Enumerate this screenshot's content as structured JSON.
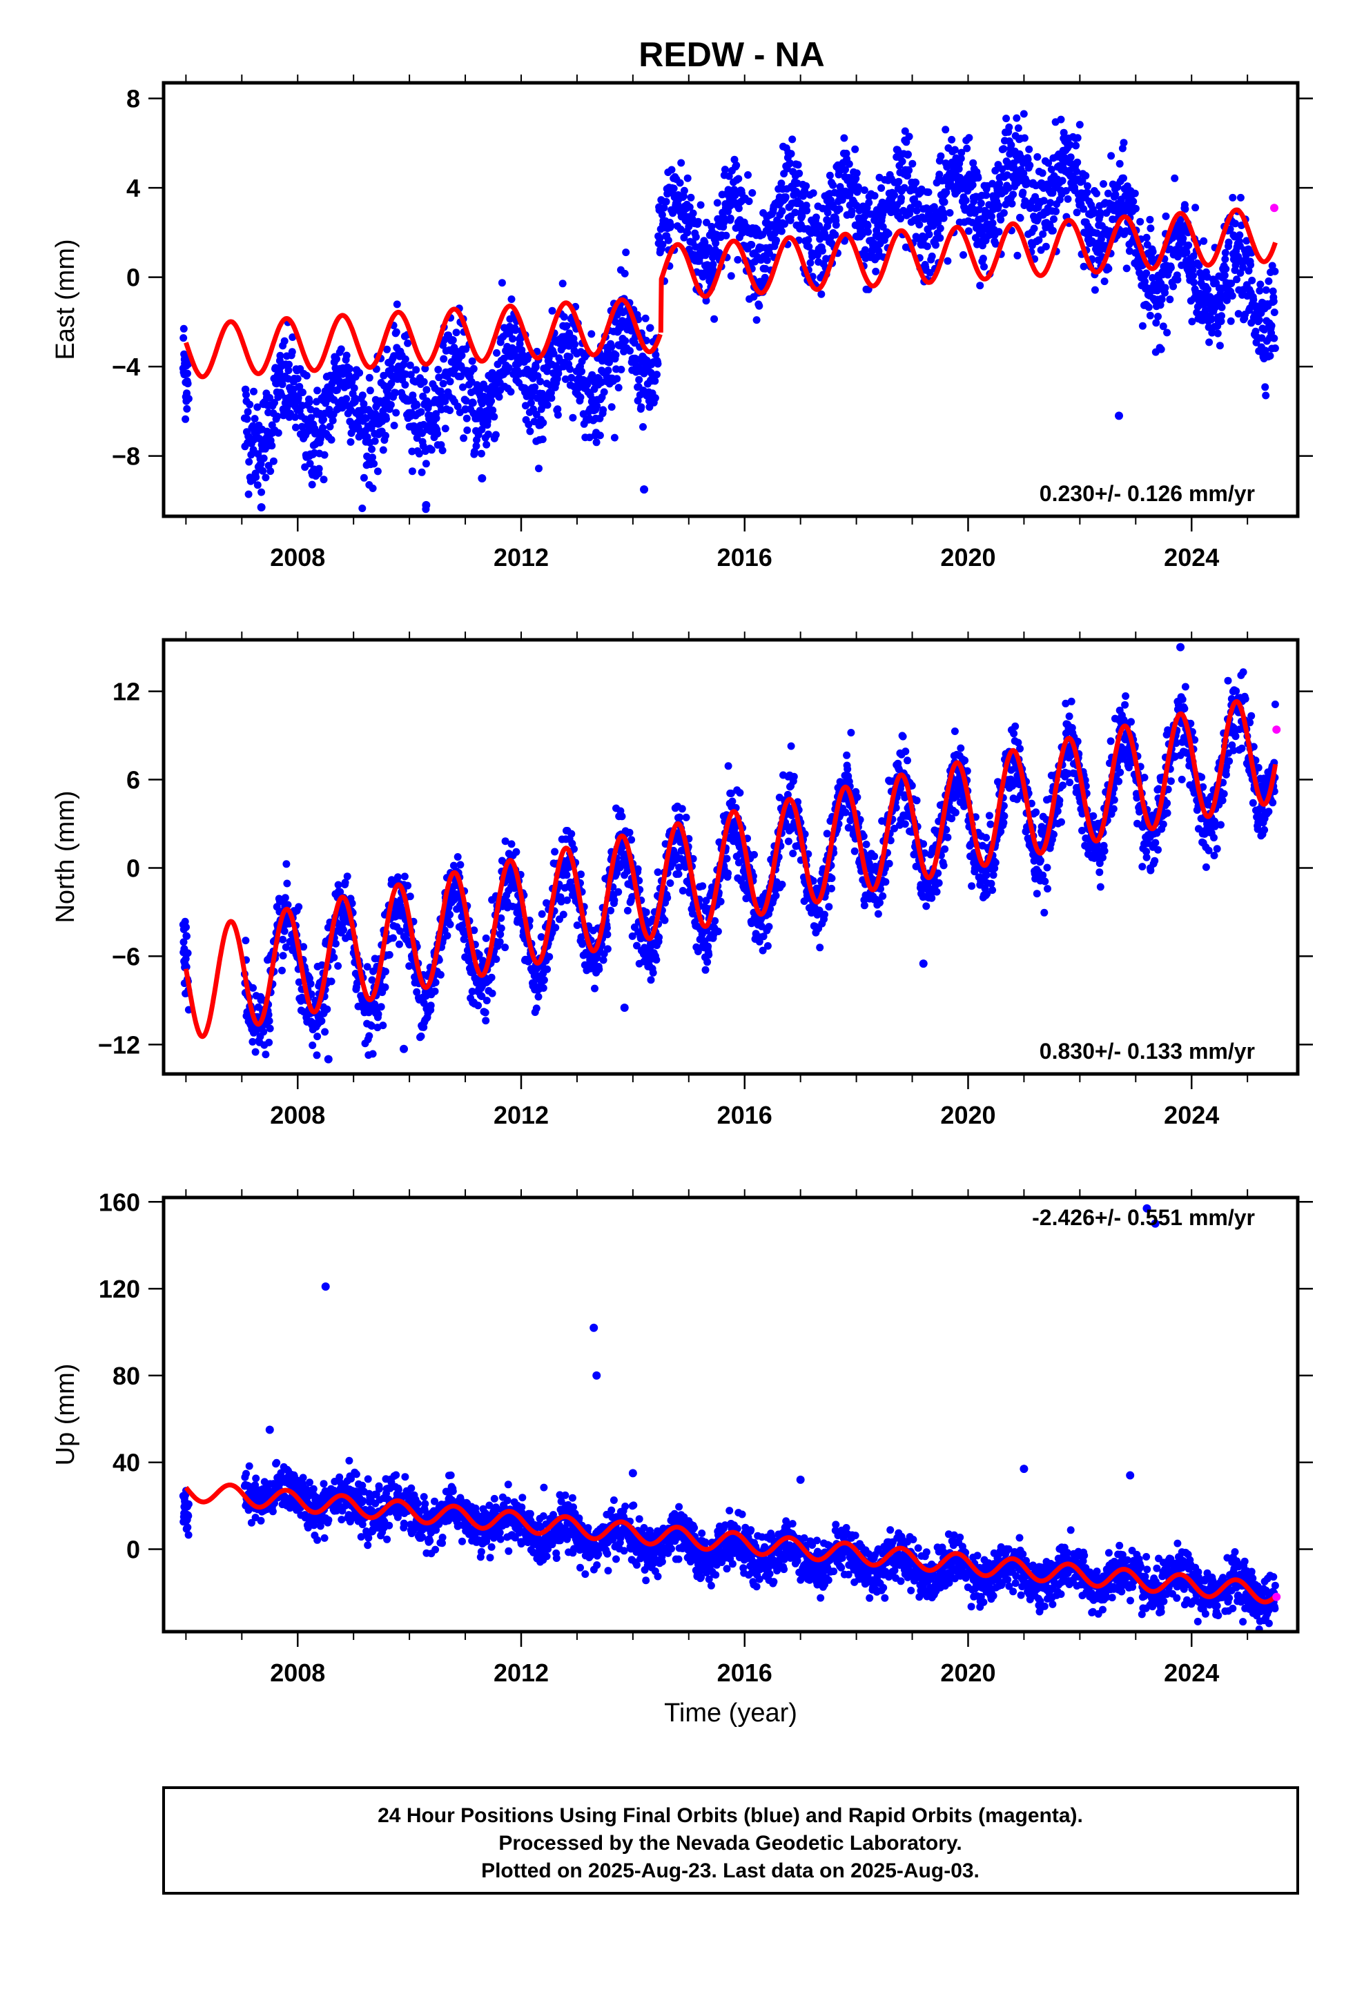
{
  "title": "REDW - NA",
  "colors": {
    "final": "#0000ff",
    "rapid": "#ff00ff",
    "model": "#ff0000",
    "frame": "#000000"
  },
  "chart_data": [
    {
      "type": "scatter",
      "component": "east",
      "ylabel": "East (mm)",
      "xlabel": "",
      "xlim": [
        2005.6,
        2025.9
      ],
      "ylim": [
        -10.7,
        8.7
      ],
      "xticks": [
        2008,
        2012,
        2016,
        2020,
        2024
      ],
      "xtick_labels": [
        "2008",
        "2012",
        "2016",
        "2020",
        "2024"
      ],
      "yticks": [
        -8,
        -4,
        0,
        4,
        8
      ],
      "ytick_labels": [
        "−8",
        "−4",
        "0",
        "4",
        "8"
      ],
      "rate_label": "0.230+/- 0.126 mm/yr",
      "final_trend": [
        [
          2005.95,
          -4.5
        ],
        [
          2007.0,
          -6.3
        ],
        [
          2008.0,
          -6.0
        ],
        [
          2010.0,
          -5.5
        ],
        [
          2012.0,
          -4.5
        ],
        [
          2013.5,
          -3.8
        ],
        [
          2014.3,
          -3.2
        ],
        [
          2014.6,
          2.0
        ],
        [
          2016.0,
          2.0
        ],
        [
          2018.0,
          2.8
        ],
        [
          2020.0,
          3.5
        ],
        [
          2021.5,
          4.3
        ],
        [
          2022.5,
          2.5
        ],
        [
          2023.5,
          0.3
        ],
        [
          2025.5,
          -0.8
        ]
      ],
      "final_amp": 1.3,
      "final_spread": 1.1,
      "rapid_points": [
        [
          2025.48,
          3.1
        ]
      ],
      "model": {
        "t0": 2006.0,
        "t1": 2025.5,
        "jump_at": 2014.5,
        "before": {
          "y0": -3.3,
          "rate": 0.14
        },
        "after": {
          "y0": -1.1,
          "rate": 0.155
        },
        "amp": 1.2,
        "phase": 0.55
      },
      "outliers": [
        [
          2022.7,
          -6.2
        ],
        [
          2010.3,
          -10.2
        ],
        [
          2007.35,
          -10.3
        ],
        [
          2014.2,
          -9.5
        ],
        [
          2011.3,
          -9.0
        ]
      ]
    },
    {
      "type": "scatter",
      "component": "north",
      "ylabel": "North (mm)",
      "xlabel": "",
      "xlim": [
        2005.6,
        2025.9
      ],
      "ylim": [
        -14.0,
        15.5
      ],
      "xticks": [
        2008,
        2012,
        2016,
        2020,
        2024
      ],
      "xtick_labels": [
        "2008",
        "2012",
        "2016",
        "2020",
        "2024"
      ],
      "yticks": [
        -12,
        -6,
        0,
        6,
        12
      ],
      "ytick_labels": [
        "−12",
        "−6",
        "0",
        "6",
        "12"
      ],
      "rate_label": "0.830+/- 0.133 mm/yr",
      "final_trend": [
        [
          2005.95,
          -7.5
        ],
        [
          2008.0,
          -7.0
        ],
        [
          2010.0,
          -5.5
        ],
        [
          2012.0,
          -3.8
        ],
        [
          2014.0,
          -2.0
        ],
        [
          2016.0,
          -0.5
        ],
        [
          2018.0,
          1.8
        ],
        [
          2020.0,
          3.0
        ],
        [
          2022.0,
          4.8
        ],
        [
          2024.0,
          6.3
        ],
        [
          2025.5,
          8.0
        ]
      ],
      "final_amp": 3.6,
      "final_spread": 1.3,
      "rapid_points": [
        [
          2025.52,
          9.4
        ]
      ],
      "model": {
        "t0": 2006.0,
        "t1": 2025.5,
        "jump_at": null,
        "before": {
          "y0": -8.0,
          "rate": 0.83
        },
        "after": {
          "y0": -8.0,
          "rate": 0.83
        },
        "amp": 3.7,
        "phase": 0.55
      },
      "outliers": [
        [
          2008.55,
          -13.0
        ],
        [
          2013.85,
          -9.5
        ],
        [
          2019.2,
          -6.5
        ],
        [
          2009.9,
          -12.3
        ],
        [
          2023.8,
          15.0
        ]
      ]
    },
    {
      "type": "scatter",
      "component": "up",
      "ylabel": "Up (mm)",
      "xlabel": "Time (year)",
      "xlim": [
        2005.6,
        2025.9
      ],
      "ylim": [
        -38.0,
        162.0
      ],
      "xticks": [
        2008,
        2012,
        2016,
        2020,
        2024
      ],
      "xtick_labels": [
        "2008",
        "2012",
        "2016",
        "2020",
        "2024"
      ],
      "yticks": [
        0,
        40,
        80,
        120,
        160
      ],
      "ytick_labels": [
        "0",
        "40",
        "80",
        "120",
        "160"
      ],
      "rate_label": "-2.426+/- 0.551 mm/yr",
      "final_trend": [
        [
          2005.95,
          15.0
        ],
        [
          2007.0,
          27.0
        ],
        [
          2008.0,
          24.0
        ],
        [
          2010.0,
          17.0
        ],
        [
          2012.0,
          10.0
        ],
        [
          2014.0,
          4.0
        ],
        [
          2016.0,
          -1.0
        ],
        [
          2018.0,
          -5.0
        ],
        [
          2020.0,
          -10.0
        ],
        [
          2022.0,
          -13.0
        ],
        [
          2024.0,
          -17.0
        ],
        [
          2025.5,
          -20.0
        ]
      ],
      "final_amp": 5.0,
      "final_spread": 5.5,
      "rapid_points": [
        [
          2025.52,
          -22.0
        ]
      ],
      "model": {
        "t0": 2006.0,
        "t1": 2025.5,
        "jump_at": null,
        "before": {
          "y0": 27.0,
          "rate": -2.426
        },
        "after": {
          "y0": 27.0,
          "rate": -2.426
        },
        "amp": 4.5,
        "phase": 0.55
      },
      "outliers": [
        [
          2008.5,
          121.0
        ],
        [
          2013.3,
          102.0
        ],
        [
          2013.35,
          80.0
        ],
        [
          2021.0,
          37.0
        ],
        [
          2017.0,
          32.0
        ],
        [
          2023.2,
          157.0
        ],
        [
          2014.0,
          35.0
        ],
        [
          2007.5,
          55.0
        ],
        [
          2022.9,
          34.0
        ],
        [
          2023.35,
          150.0
        ]
      ]
    }
  ],
  "footer": {
    "line1": "24 Hour Positions Using Final Orbits (blue) and Rapid Orbits (magenta).",
    "line2": "Processed by the Nevada Geodetic Laboratory.",
    "line3": "Plotted on 2025-Aug-23. Last data on 2025-Aug-03."
  }
}
